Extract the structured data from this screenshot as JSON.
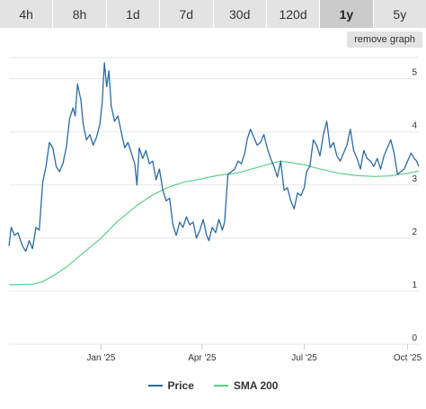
{
  "tabs": [
    {
      "label": "4h",
      "active": false
    },
    {
      "label": "8h",
      "active": false
    },
    {
      "label": "1d",
      "active": false
    },
    {
      "label": "7d",
      "active": false
    },
    {
      "label": "30d",
      "active": false
    },
    {
      "label": "120d",
      "active": false
    },
    {
      "label": "1y",
      "active": true
    },
    {
      "label": "5y",
      "active": false
    }
  ],
  "remove_button": "remove graph",
  "colors": {
    "price": "#2b6aa0",
    "sma": "#5cce87",
    "grid": "#e6e6e6",
    "text": "#333333"
  },
  "chart_data": {
    "type": "line",
    "ylim": [
      0,
      5.4
    ],
    "yticks": [
      0,
      1,
      2,
      3,
      4,
      5
    ],
    "x_range": [
      "2024-10-11",
      "2025-10-11"
    ],
    "xticks": [
      {
        "date": "2025-01-01",
        "label": "Jan '25"
      },
      {
        "date": "2025-04-01",
        "label": "Apr '25"
      },
      {
        "date": "2025-07-01",
        "label": "Jul '25"
      },
      {
        "date": "2025-10-01",
        "label": "Oct '25"
      }
    ],
    "grid": true,
    "legend_position": "bottom",
    "series": [
      {
        "name": "Price",
        "color": "#2b6aa0",
        "points": [
          [
            "2024-10-11",
            1.85
          ],
          [
            "2024-10-13",
            2.2
          ],
          [
            "2024-10-16",
            2.05
          ],
          [
            "2024-10-19",
            2.1
          ],
          [
            "2024-10-23",
            1.85
          ],
          [
            "2024-10-26",
            1.75
          ],
          [
            "2024-10-29",
            1.95
          ],
          [
            "2024-11-01",
            1.8
          ],
          [
            "2024-11-04",
            2.2
          ],
          [
            "2024-11-07",
            2.15
          ],
          [
            "2024-11-10",
            3.05
          ],
          [
            "2024-11-13",
            3.35
          ],
          [
            "2024-11-16",
            3.8
          ],
          [
            "2024-11-19",
            3.7
          ],
          [
            "2024-11-22",
            3.35
          ],
          [
            "2024-11-25",
            3.25
          ],
          [
            "2024-11-28",
            3.4
          ],
          [
            "2024-12-01",
            3.7
          ],
          [
            "2024-12-04",
            4.25
          ],
          [
            "2024-12-07",
            4.45
          ],
          [
            "2024-12-09",
            4.3
          ],
          [
            "2024-12-11",
            4.9
          ],
          [
            "2024-12-14",
            4.6
          ],
          [
            "2024-12-16",
            4.15
          ],
          [
            "2024-12-19",
            3.85
          ],
          [
            "2024-12-22",
            3.95
          ],
          [
            "2024-12-25",
            3.75
          ],
          [
            "2024-12-28",
            3.9
          ],
          [
            "2024-12-31",
            4.15
          ],
          [
            "2025-01-02",
            4.55
          ],
          [
            "2025-01-04",
            5.3
          ],
          [
            "2025-01-06",
            4.85
          ],
          [
            "2025-01-08",
            5.15
          ],
          [
            "2025-01-10",
            4.5
          ],
          [
            "2025-01-13",
            4.2
          ],
          [
            "2025-01-16",
            4.3
          ],
          [
            "2025-01-19",
            4.0
          ],
          [
            "2025-01-22",
            3.7
          ],
          [
            "2025-01-25",
            3.8
          ],
          [
            "2025-01-28",
            3.6
          ],
          [
            "2025-01-31",
            3.4
          ],
          [
            "2025-02-02",
            3.0
          ],
          [
            "2025-02-04",
            3.7
          ],
          [
            "2025-02-07",
            3.5
          ],
          [
            "2025-02-10",
            3.65
          ],
          [
            "2025-02-13",
            3.4
          ],
          [
            "2025-02-16",
            3.45
          ],
          [
            "2025-02-19",
            3.1
          ],
          [
            "2025-02-22",
            3.3
          ],
          [
            "2025-02-25",
            2.9
          ],
          [
            "2025-02-28",
            2.7
          ],
          [
            "2025-03-03",
            2.75
          ],
          [
            "2025-03-06",
            2.25
          ],
          [
            "2025-03-09",
            2.05
          ],
          [
            "2025-03-12",
            2.3
          ],
          [
            "2025-03-15",
            2.2
          ],
          [
            "2025-03-18",
            2.4
          ],
          [
            "2025-03-21",
            2.25
          ],
          [
            "2025-03-24",
            2.3
          ],
          [
            "2025-03-27",
            2.0
          ],
          [
            "2025-03-30",
            2.15
          ],
          [
            "2025-04-02",
            2.35
          ],
          [
            "2025-04-05",
            2.05
          ],
          [
            "2025-04-07",
            1.95
          ],
          [
            "2025-04-10",
            2.2
          ],
          [
            "2025-04-13",
            2.1
          ],
          [
            "2025-04-16",
            2.35
          ],
          [
            "2025-04-19",
            2.15
          ],
          [
            "2025-04-21",
            2.3
          ],
          [
            "2025-04-24",
            3.2
          ],
          [
            "2025-04-27",
            3.25
          ],
          [
            "2025-04-30",
            3.3
          ],
          [
            "2025-05-03",
            3.45
          ],
          [
            "2025-05-06",
            3.4
          ],
          [
            "2025-05-09",
            3.6
          ],
          [
            "2025-05-11",
            3.85
          ],
          [
            "2025-05-14",
            4.05
          ],
          [
            "2025-05-17",
            3.9
          ],
          [
            "2025-05-20",
            3.75
          ],
          [
            "2025-05-23",
            3.8
          ],
          [
            "2025-05-26",
            3.95
          ],
          [
            "2025-05-29",
            3.7
          ],
          [
            "2025-06-01",
            3.5
          ],
          [
            "2025-06-04",
            3.35
          ],
          [
            "2025-06-07",
            3.15
          ],
          [
            "2025-06-10",
            3.45
          ],
          [
            "2025-06-13",
            2.9
          ],
          [
            "2025-06-16",
            2.95
          ],
          [
            "2025-06-19",
            2.7
          ],
          [
            "2025-06-22",
            2.55
          ],
          [
            "2025-06-25",
            2.85
          ],
          [
            "2025-06-28",
            2.8
          ],
          [
            "2025-07-01",
            2.95
          ],
          [
            "2025-07-03",
            3.25
          ],
          [
            "2025-07-06",
            3.35
          ],
          [
            "2025-07-09",
            3.85
          ],
          [
            "2025-07-12",
            3.75
          ],
          [
            "2025-07-15",
            3.55
          ],
          [
            "2025-07-18",
            3.95
          ],
          [
            "2025-07-21",
            4.2
          ],
          [
            "2025-07-24",
            3.7
          ],
          [
            "2025-07-27",
            3.8
          ],
          [
            "2025-07-30",
            3.55
          ],
          [
            "2025-08-02",
            3.45
          ],
          [
            "2025-08-05",
            3.6
          ],
          [
            "2025-08-08",
            3.75
          ],
          [
            "2025-08-11",
            4.05
          ],
          [
            "2025-08-14",
            3.65
          ],
          [
            "2025-08-17",
            3.5
          ],
          [
            "2025-08-20",
            3.3
          ],
          [
            "2025-08-23",
            3.65
          ],
          [
            "2025-08-26",
            3.5
          ],
          [
            "2025-08-29",
            3.45
          ],
          [
            "2025-09-01",
            3.35
          ],
          [
            "2025-09-04",
            3.5
          ],
          [
            "2025-09-07",
            3.3
          ],
          [
            "2025-09-10",
            3.55
          ],
          [
            "2025-09-13",
            3.7
          ],
          [
            "2025-09-16",
            3.85
          ],
          [
            "2025-09-19",
            3.6
          ],
          [
            "2025-09-22",
            3.2
          ],
          [
            "2025-09-25",
            3.25
          ],
          [
            "2025-09-28",
            3.3
          ],
          [
            "2025-10-01",
            3.45
          ],
          [
            "2025-10-04",
            3.6
          ],
          [
            "2025-10-07",
            3.5
          ],
          [
            "2025-10-09",
            3.45
          ],
          [
            "2025-10-11",
            3.35
          ]
        ]
      },
      {
        "name": "SMA 200",
        "color": "#5cce87",
        "points": [
          [
            "2024-10-11",
            1.12
          ],
          [
            "2024-11-01",
            1.13
          ],
          [
            "2024-11-10",
            1.18
          ],
          [
            "2024-11-20",
            1.3
          ],
          [
            "2024-12-01",
            1.45
          ],
          [
            "2024-12-15",
            1.7
          ],
          [
            "2025-01-01",
            2.0
          ],
          [
            "2025-01-15",
            2.3
          ],
          [
            "2025-02-01",
            2.6
          ],
          [
            "2025-02-15",
            2.8
          ],
          [
            "2025-03-01",
            2.95
          ],
          [
            "2025-03-15",
            3.05
          ],
          [
            "2025-04-01",
            3.12
          ],
          [
            "2025-04-15",
            3.18
          ],
          [
            "2025-05-01",
            3.22
          ],
          [
            "2025-05-15",
            3.3
          ],
          [
            "2025-06-01",
            3.4
          ],
          [
            "2025-06-10",
            3.45
          ],
          [
            "2025-06-20",
            3.42
          ],
          [
            "2025-07-01",
            3.38
          ],
          [
            "2025-07-15",
            3.3
          ],
          [
            "2025-08-01",
            3.22
          ],
          [
            "2025-08-15",
            3.18
          ],
          [
            "2025-09-01",
            3.16
          ],
          [
            "2025-09-15",
            3.17
          ],
          [
            "2025-10-01",
            3.22
          ],
          [
            "2025-10-11",
            3.26
          ]
        ]
      }
    ]
  }
}
